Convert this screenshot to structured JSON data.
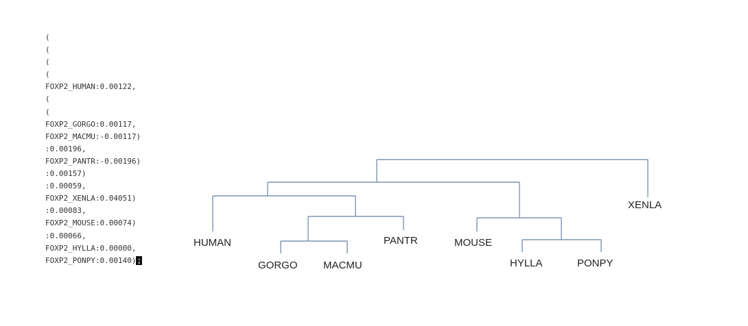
{
  "newick": {
    "lines": [
      "(",
      "(",
      "(",
      "(",
      "FOXP2_HUMAN:0.00122,",
      "(",
      "(",
      "FOXP2_GORGO:0.00117,",
      "FOXP2_MACMU:-0.00117)",
      ":0.00196,",
      "FOXP2_PANTR:-0.00196)",
      ":0.00157)",
      ":0.00059,",
      "FOXP2_XENLA:0.04051)",
      ":0.00083,",
      "FOXP2_MOUSE:0.00074)",
      ":0.00066,",
      "FOXP2_HYLLA:0.00000,",
      "FOXP2_PONPY:0.00140)"
    ],
    "terminator": ";"
  },
  "tree": {
    "leaves": {
      "human": "HUMAN",
      "gorgo": "GORGO",
      "macmu": "MACMU",
      "pantr": "PANTR",
      "mouse": "MOUSE",
      "hylla": "HYLLA",
      "ponpy": "PONPY",
      "xenla": "XENLA"
    }
  }
}
